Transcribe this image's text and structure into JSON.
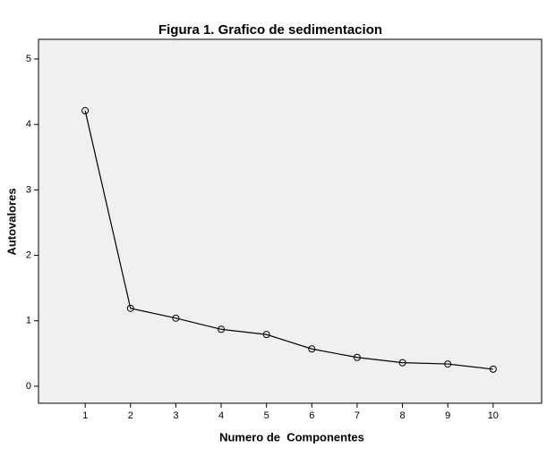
{
  "chart_data": {
    "type": "line",
    "title": "Figura 1. Grafico de sedimentacion",
    "x_label": "Numero de  Componentes",
    "y_label": "Autovalores",
    "x": [
      1,
      2,
      3,
      4,
      5,
      6,
      7,
      8,
      9,
      10
    ],
    "series": [
      {
        "color": "#000000",
        "values": [
          4.21,
          1.19,
          1.04,
          0.87,
          0.79,
          0.57,
          0.44,
          0.36,
          0.34,
          0.26
        ]
      }
    ],
    "xlim": [
      -0.03,
      11.07
    ],
    "xticks": [
      1,
      2,
      3,
      4,
      5,
      6,
      7,
      8,
      9,
      10
    ],
    "ylim": [
      -0.26,
      5.3
    ],
    "yticks": [
      0,
      1,
      2,
      3,
      4,
      5
    ],
    "background": "#f0f0f0",
    "markers": "open-circle"
  }
}
